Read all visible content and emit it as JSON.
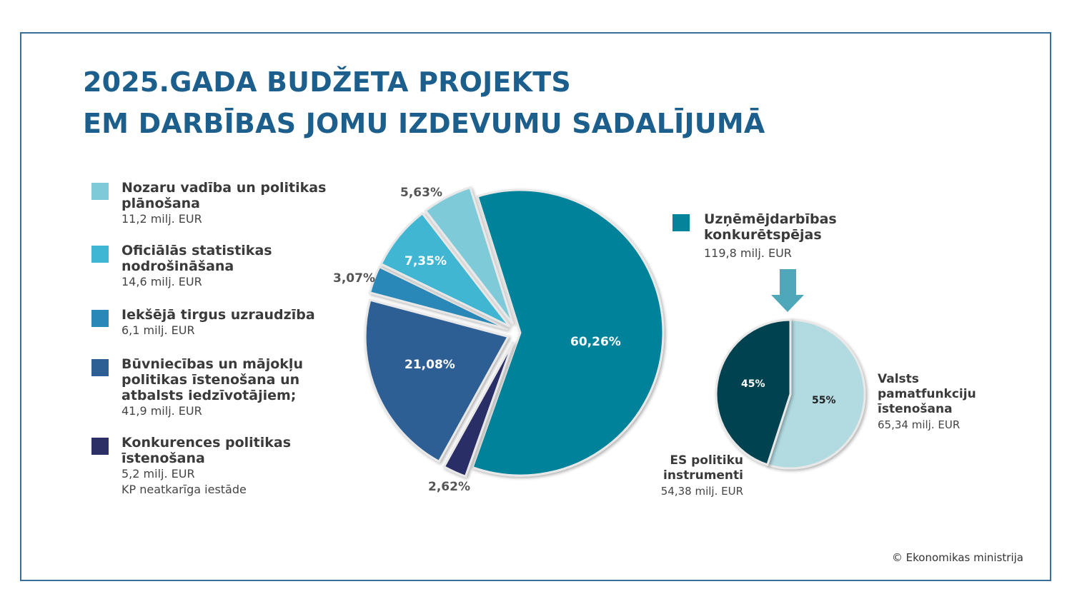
{
  "title": {
    "line1": "2025.GADA BUDŽETA PROJEKTS",
    "line2": "EM DARBĪBAS JOMU IZDEVUMU SADALĪJUMĀ"
  },
  "legend": [
    {
      "name": "Nozaru vadība un politikas plānošana",
      "value": "11,2 milj. EUR",
      "color": "#7ecad8"
    },
    {
      "name": "Oficiālās statistikas nodrošināšana",
      "value": "14,6 milj. EUR",
      "color": "#3fb6d3"
    },
    {
      "name": "Iekšējā tirgus uzraudzība",
      "value": "6,1 milj. EUR",
      "color": "#2a88b8"
    },
    {
      "name": "Būvniecības un mājokļu politikas īstenošana un atbalsts iedzīvotājiem;",
      "value": "41,9 milj. EUR",
      "color": "#2d5e94"
    },
    {
      "name": "Konkurences politikas īstenošana",
      "value": "5,2 milj. EUR",
      "note": "KP neatkarīga iestāde",
      "color": "#2b2f66"
    }
  ],
  "highlight": {
    "name": "Uzņēmējdarbības konkurētspējas",
    "value": "119,8 milj. EUR",
    "color": "#05839a",
    "arrow_color": "#4fa8b9"
  },
  "chart_data": [
    {
      "type": "pie",
      "slices": [
        {
          "label": "Uzņēmējdarbības konkurētspējas",
          "percent": 60.26,
          "text": "60,26%",
          "color": "#05839a"
        },
        {
          "label": "Konkurences politikas īstenošana",
          "percent": 2.62,
          "text": "2,62%",
          "color": "#2b2f66"
        },
        {
          "label": "Būvniecības un mājokļu politikas īstenošana un atbalsts iedzīvotājiem",
          "percent": 21.08,
          "text": "21,08%",
          "color": "#2d5e94"
        },
        {
          "label": "Iekšējā tirgus uzraudzība",
          "percent": 3.07,
          "text": "3,07%",
          "color": "#2a88b8"
        },
        {
          "label": "Oficiālās statistikas nodrošināšana",
          "percent": 7.35,
          "text": "7,35%",
          "color": "#3fb6d3"
        },
        {
          "label": "Nozaru vadība un politikas plānošana",
          "percent": 5.63,
          "text": "5,63%",
          "color": "#7ecad8"
        }
      ]
    },
    {
      "type": "pie",
      "slices": [
        {
          "label": "Valsts pamatfunkciju īstenošana",
          "percent": 55,
          "text": "55%",
          "value": "65,34 milj. EUR",
          "color": "#b1dae1"
        },
        {
          "label": "ES politiku instrumenti",
          "percent": 45,
          "text": "45%",
          "value": "54,38 milj. EUR",
          "color": "#03424f"
        }
      ]
    }
  ],
  "small_labels": {
    "right": {
      "name": "Valsts pamatfunkciju īstenošana",
      "value": "65,34 milj. EUR"
    },
    "left": {
      "name": "ES politiku instrumenti",
      "value": "54,38 milj. EUR"
    }
  },
  "copyright": "© Ekonomikas ministrija"
}
